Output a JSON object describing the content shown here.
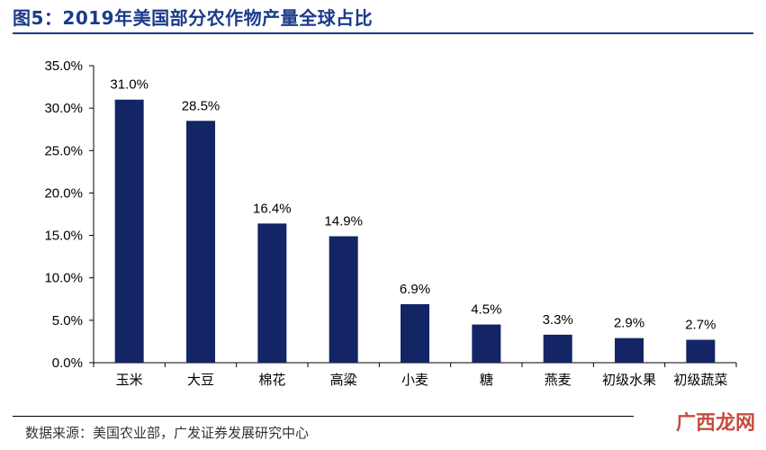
{
  "title": "图5：2019年美国部分农作物产量全球占比",
  "source": "数据来源：美国农业部，广发证券发展研究中心",
  "watermark": "广西龙网",
  "colors": {
    "bar": "#142566",
    "title": "#1a3a8a"
  },
  "chart_data": {
    "type": "bar",
    "title": "图5：2019年美国部分农作物产量全球占比",
    "xlabel": "",
    "ylabel": "",
    "categories": [
      "玉米",
      "大豆",
      "棉花",
      "高粱",
      "小麦",
      "糖",
      "燕麦",
      "初级水果",
      "初级蔬菜"
    ],
    "values": [
      31.0,
      28.5,
      16.4,
      14.9,
      6.9,
      4.5,
      3.3,
      2.9,
      2.7
    ],
    "value_labels": [
      "31.0%",
      "28.5%",
      "16.4%",
      "14.9%",
      "6.9%",
      "4.5%",
      "3.3%",
      "2.9%",
      "2.7%"
    ],
    "yticks": [
      "0.0%",
      "5.0%",
      "10.0%",
      "15.0%",
      "20.0%",
      "25.0%",
      "30.0%",
      "35.0%"
    ],
    "ylim": [
      0,
      35
    ],
    "grid": false,
    "legend": "none"
  }
}
